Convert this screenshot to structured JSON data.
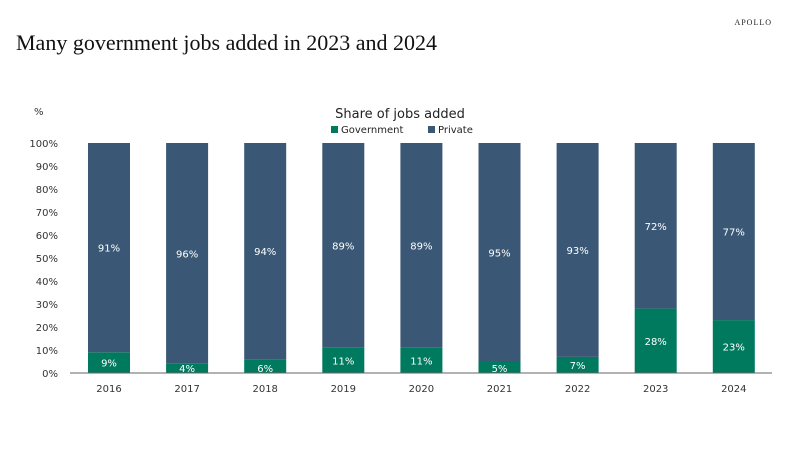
{
  "brand": "APOLLO",
  "title": "Many government jobs added in 2023 and 2024",
  "chart_data": {
    "type": "bar",
    "stacked": true,
    "title": "Share of jobs added",
    "ylabel": "%",
    "xlabel": "",
    "ylim": [
      0,
      100
    ],
    "yticks": [
      "0%",
      "10%",
      "20%",
      "30%",
      "40%",
      "50%",
      "60%",
      "70%",
      "80%",
      "90%",
      "100%"
    ],
    "categories": [
      "2016",
      "2017",
      "2018",
      "2019",
      "2020",
      "2021",
      "2022",
      "2023",
      "2024"
    ],
    "series": [
      {
        "name": "Government",
        "color": "#007a5e",
        "values": [
          9,
          4,
          6,
          11,
          11,
          5,
          7,
          28,
          23
        ]
      },
      {
        "name": "Private",
        "color": "#3a5875",
        "values": [
          91,
          96,
          94,
          89,
          89,
          95,
          93,
          72,
          77
        ]
      }
    ],
    "legend": "top-center",
    "grid": false
  }
}
